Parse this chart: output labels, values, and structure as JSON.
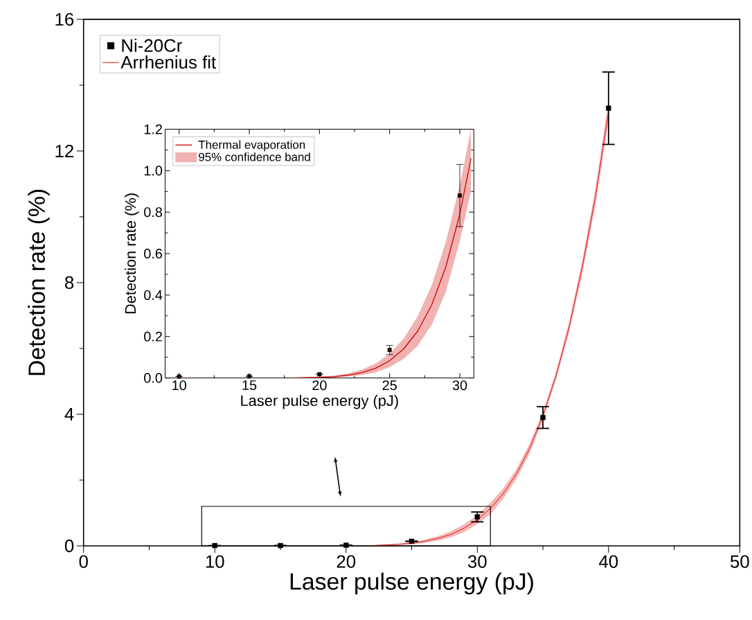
{
  "chart_data": [
    {
      "type": "line",
      "xlabel": "Laser pulse energy (pJ)",
      "ylabel": "Detection rate (%)",
      "xlim": [
        0,
        50
      ],
      "ylim": [
        0,
        16
      ],
      "xticks": [
        0,
        10,
        20,
        30,
        40,
        50
      ],
      "yticks": [
        0,
        4,
        8,
        12,
        16
      ],
      "legend": "top left",
      "series": [
        {
          "type": "scatter",
          "name": "Ni-20Cr",
          "color": "#000000",
          "marker": "square",
          "x": [
            10,
            15,
            20,
            25,
            30,
            35,
            40
          ],
          "values": [
            0.01,
            0.01,
            0.02,
            0.14,
            0.88,
            3.9,
            13.3
          ],
          "errors": [
            null,
            null,
            null,
            null,
            0.15,
            0.33,
            1.1
          ]
        },
        {
          "name": "Arrhenius fit",
          "color": "#e01010",
          "x": [
            22,
            23,
            24,
            25,
            26,
            27,
            28,
            29,
            30,
            31,
            32,
            33,
            34,
            35,
            36,
            37,
            38,
            39,
            40
          ],
          "values": [
            0.01,
            0.03,
            0.05,
            0.08,
            0.14,
            0.23,
            0.35,
            0.54,
            0.79,
            1.14,
            1.6,
            2.2,
            2.97,
            3.95,
            5.17,
            6.65,
            8.47,
            10.6,
            13.2
          ],
          "lower": [
            0.01,
            0.01,
            0.03,
            0.05,
            0.09,
            0.16,
            0.26,
            0.42,
            0.66,
            0.96,
            1.44,
            2.05,
            2.82,
            3.83,
            5.04,
            6.48,
            8.26,
            10.34,
            12.87
          ],
          "upper": [
            0.02,
            0.04,
            0.07,
            0.12,
            0.19,
            0.3,
            0.45,
            0.66,
            0.93,
            1.31,
            1.76,
            2.35,
            3.12,
            4.07,
            5.3,
            6.82,
            8.68,
            10.87,
            13.53
          ]
        }
      ]
    },
    {
      "type": "line",
      "xlabel": "Laser pulse energy (pJ)",
      "ylabel": "Detection rate (%)",
      "xlim": [
        9,
        31
      ],
      "ylim": [
        0,
        1.2
      ],
      "xticks": [
        10,
        15,
        20,
        25,
        30
      ],
      "yticks": [
        {
          "value": 0,
          "label": "0.0"
        },
        {
          "value": 0.2,
          "label": "0.2"
        },
        {
          "value": 0.4,
          "label": "0.4"
        },
        {
          "value": 0.6,
          "label": "0.6"
        },
        {
          "value": 0.8,
          "label": "0.8"
        },
        {
          "value": 1.0,
          "label": "1.0"
        },
        {
          "value": 1.2,
          "label": "1.2"
        }
      ],
      "legend": "top left",
      "annotations": [
        "95% confidence band"
      ],
      "series": [
        {
          "name": "Thermal evaporation",
          "color": "#d00000",
          "x": [
            18,
            20,
            21,
            22,
            23,
            24,
            25,
            26,
            27,
            28,
            29,
            30,
            30.8
          ],
          "values": [
            0,
            0.003,
            0.006,
            0.013,
            0.026,
            0.047,
            0.083,
            0.14,
            0.226,
            0.353,
            0.535,
            0.79,
            1.06
          ],
          "lower": [
            0,
            0.001,
            0.003,
            0.007,
            0.014,
            0.027,
            0.052,
            0.092,
            0.155,
            0.257,
            0.415,
            0.66,
            0.9
          ],
          "upper": [
            0.001,
            0.006,
            0.011,
            0.021,
            0.04,
            0.07,
            0.117,
            0.19,
            0.298,
            0.447,
            0.655,
            0.93,
            1.2
          ]
        },
        {
          "type": "scatter",
          "color": "#200000",
          "marker": "square",
          "x": [
            10,
            15,
            20,
            25,
            30
          ],
          "values": [
            0.007,
            0.008,
            0.018,
            0.135,
            0.88
          ],
          "errors": [
            null,
            null,
            null,
            0.022,
            0.15
          ]
        }
      ]
    }
  ]
}
